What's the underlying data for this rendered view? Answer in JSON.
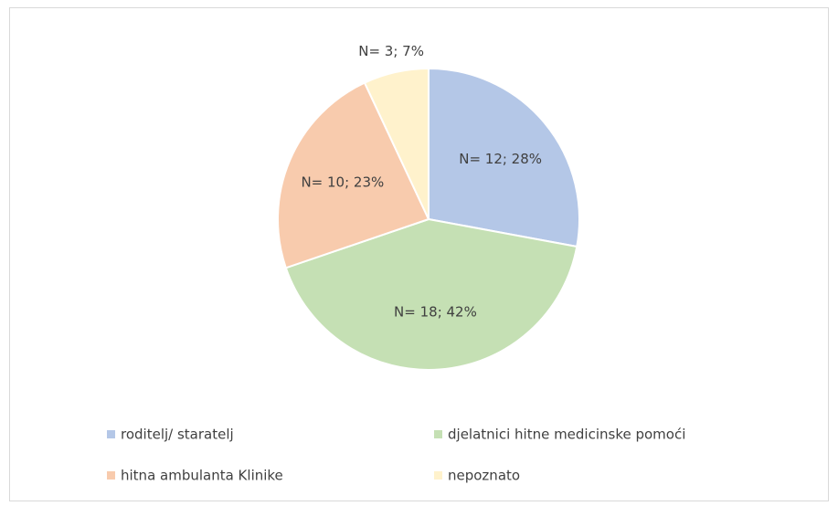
{
  "chart_data": {
    "type": "pie",
    "categories": [
      "roditelj/ staratelj",
      "djelatnici hitne medicinske pomoći",
      "hitna ambulanta Klinike",
      "nepoznato"
    ],
    "values": [
      12,
      18,
      10,
      3
    ],
    "value_labels": [
      "N= 12; 28%",
      "N= 18; 42%",
      "N= 10; 23%",
      "N= 3; 7%"
    ],
    "colors": [
      "#b4c7e7",
      "#c5e0b4",
      "#f8cbad",
      "#fff2cc"
    ],
    "legend": "bottom"
  }
}
